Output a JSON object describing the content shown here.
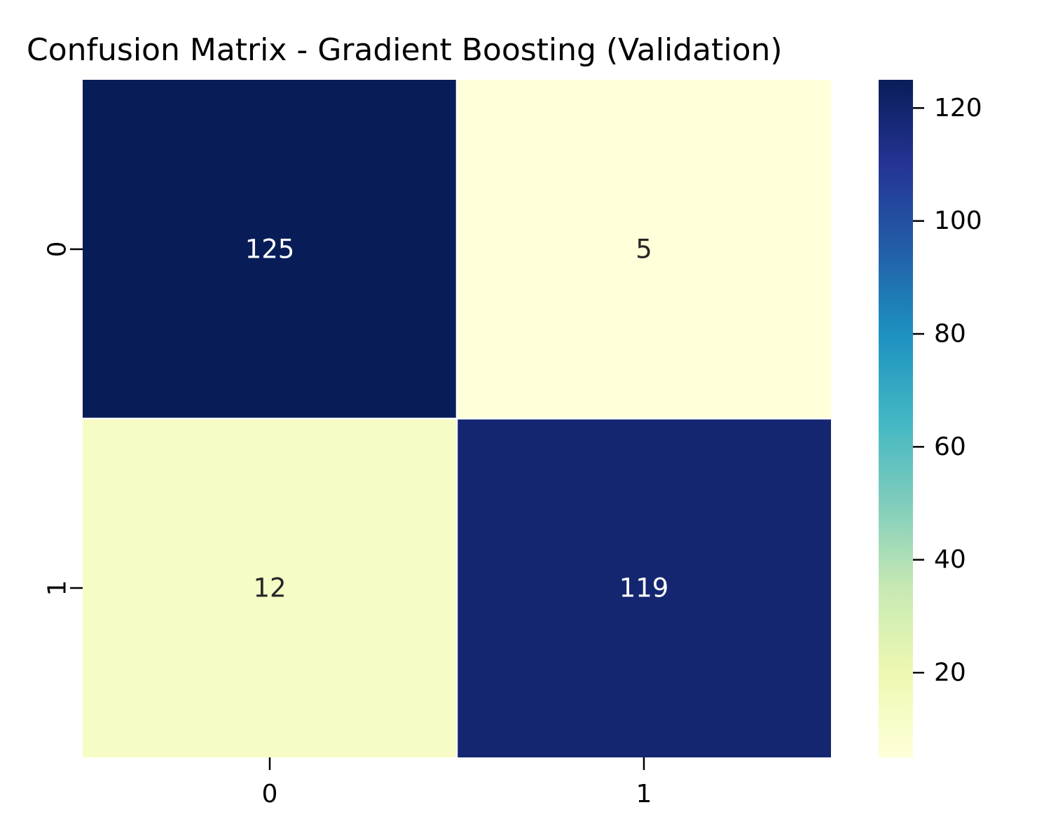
{
  "chart_data": {
    "type": "heatmap",
    "title": "Confusion Matrix - Gradient Boosting (Validation)",
    "xlabel": "",
    "ylabel": "",
    "x_categories": [
      "0",
      "1"
    ],
    "y_categories": [
      "0",
      "1"
    ],
    "values": [
      [
        125,
        5
      ],
      [
        12,
        119
      ]
    ],
    "colormap": "YlGnBu",
    "colorbar": {
      "range": [
        5,
        125
      ],
      "ticks": [
        20,
        40,
        60,
        80,
        100,
        120
      ]
    },
    "grid": false
  }
}
